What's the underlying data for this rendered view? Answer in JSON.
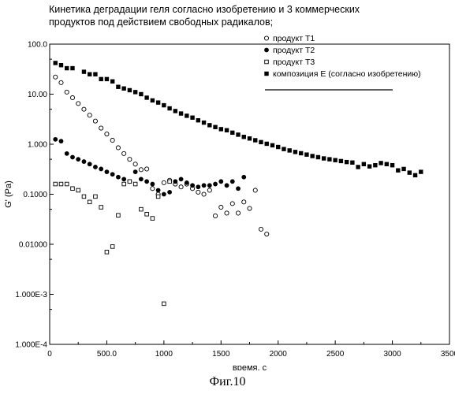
{
  "figure": {
    "title_lines": [
      "Кинетика деградации геля согласно изобретению и 3 коммерческих",
      "продуктов под действием свободных радикалов;"
    ],
    "caption": "Фиг.10"
  },
  "chart_data": {
    "type": "scatter",
    "title": "Кинетика деградации геля согласно изобретению и 3 коммерческих продуктов под действием свободных радикалов;",
    "xlabel": "время. с",
    "ylabel": "G' (Pa)",
    "xlim": [
      0,
      3500
    ],
    "ylim": [
      0.0001,
      100
    ],
    "y_scale": "log",
    "grid": false,
    "legend_position": "top-right",
    "x_ticks": [
      0,
      500,
      1000,
      1500,
      2000,
      2500,
      3000,
      3500
    ],
    "x_tick_labels": [
      "0",
      "500.0",
      "1000",
      "1500",
      "2000",
      "2500",
      "3000",
      "3500"
    ],
    "y_ticks": [
      100,
      10,
      1,
      0.1,
      0.01,
      0.001,
      0.0001
    ],
    "y_tick_labels": [
      "100.0",
      "10.00",
      "1.000",
      "0.1000",
      "0.01000",
      "1.000E-3",
      "1.000E-4"
    ],
    "series": [
      {
        "name": "продукт T1",
        "marker": "open-circle",
        "points": [
          [
            50,
            22
          ],
          [
            100,
            17
          ],
          [
            150,
            11
          ],
          [
            200,
            8.5
          ],
          [
            250,
            6.5
          ],
          [
            300,
            5
          ],
          [
            350,
            3.8
          ],
          [
            400,
            2.9
          ],
          [
            450,
            2.1
          ],
          [
            500,
            1.6
          ],
          [
            550,
            1.2
          ],
          [
            600,
            0.85
          ],
          [
            650,
            0.65
          ],
          [
            700,
            0.5
          ],
          [
            750,
            0.4
          ],
          [
            800,
            0.31
          ],
          [
            850,
            0.32
          ],
          [
            900,
            0.13
          ],
          [
            950,
            0.1
          ],
          [
            1000,
            0.17
          ],
          [
            1050,
            0.19
          ],
          [
            1100,
            0.16
          ],
          [
            1150,
            0.14
          ],
          [
            1200,
            0.16
          ],
          [
            1250,
            0.13
          ],
          [
            1300,
            0.11
          ],
          [
            1350,
            0.1
          ],
          [
            1400,
            0.12
          ],
          [
            1450,
            0.037
          ],
          [
            1500,
            0.055
          ],
          [
            1550,
            0.042
          ],
          [
            1600,
            0.065
          ],
          [
            1650,
            0.042
          ],
          [
            1700,
            0.07
          ],
          [
            1750,
            0.052
          ],
          [
            1800,
            0.12
          ],
          [
            1850,
            0.02
          ],
          [
            1900,
            0.016
          ]
        ]
      },
      {
        "name": "продукт T2",
        "marker": "filled-circle",
        "points": [
          [
            50,
            1.25
          ],
          [
            100,
            1.15
          ],
          [
            150,
            0.65
          ],
          [
            200,
            0.55
          ],
          [
            250,
            0.5
          ],
          [
            300,
            0.45
          ],
          [
            350,
            0.4
          ],
          [
            400,
            0.35
          ],
          [
            450,
            0.32
          ],
          [
            500,
            0.28
          ],
          [
            550,
            0.25
          ],
          [
            600,
            0.22
          ],
          [
            650,
            0.2
          ],
          [
            700,
            0.18
          ],
          [
            750,
            0.28
          ],
          [
            800,
            0.2
          ],
          [
            850,
            0.18
          ],
          [
            900,
            0.16
          ],
          [
            950,
            0.12
          ],
          [
            1000,
            0.1
          ],
          [
            1050,
            0.11
          ],
          [
            1100,
            0.18
          ],
          [
            1150,
            0.2
          ],
          [
            1200,
            0.17
          ],
          [
            1250,
            0.15
          ],
          [
            1300,
            0.14
          ],
          [
            1350,
            0.15
          ],
          [
            1400,
            0.15
          ],
          [
            1450,
            0.16
          ],
          [
            1500,
            0.18
          ],
          [
            1550,
            0.15
          ],
          [
            1600,
            0.18
          ],
          [
            1650,
            0.13
          ],
          [
            1700,
            0.22
          ]
        ]
      },
      {
        "name": "продукт T3",
        "marker": "open-square",
        "points": [
          [
            50,
            0.16
          ],
          [
            100,
            0.16
          ],
          [
            150,
            0.16
          ],
          [
            200,
            0.13
          ],
          [
            250,
            0.12
          ],
          [
            300,
            0.09
          ],
          [
            350,
            0.07
          ],
          [
            400,
            0.09
          ],
          [
            450,
            0.055
          ],
          [
            500,
            0.007
          ],
          [
            550,
            0.009
          ],
          [
            600,
            0.038
          ],
          [
            650,
            0.16
          ],
          [
            700,
            0.18
          ],
          [
            750,
            0.16
          ],
          [
            800,
            0.05
          ],
          [
            850,
            0.04
          ],
          [
            900,
            0.033
          ],
          [
            950,
            0.09
          ],
          [
            1000,
            0.00065
          ],
          [
            1050,
            0.18
          ]
        ]
      },
      {
        "name": "композиция E (согласно изобретению)",
        "marker": "filled-square",
        "points": [
          [
            50,
            42
          ],
          [
            100,
            38
          ],
          [
            150,
            33
          ],
          [
            200,
            33
          ],
          [
            300,
            28
          ],
          [
            350,
            25
          ],
          [
            400,
            25
          ],
          [
            450,
            20
          ],
          [
            500,
            20
          ],
          [
            550,
            18
          ],
          [
            600,
            14
          ],
          [
            650,
            13
          ],
          [
            700,
            12
          ],
          [
            750,
            11
          ],
          [
            800,
            10
          ],
          [
            850,
            8.5
          ],
          [
            900,
            7.5
          ],
          [
            950,
            6.8
          ],
          [
            1000,
            6
          ],
          [
            1050,
            5.2
          ],
          [
            1100,
            4.6
          ],
          [
            1150,
            4.1
          ],
          [
            1200,
            3.7
          ],
          [
            1250,
            3.4
          ],
          [
            1300,
            3
          ],
          [
            1350,
            2.7
          ],
          [
            1400,
            2.4
          ],
          [
            1450,
            2.2
          ],
          [
            1500,
            2
          ],
          [
            1550,
            1.9
          ],
          [
            1600,
            1.7
          ],
          [
            1650,
            1.55
          ],
          [
            1700,
            1.4
          ],
          [
            1750,
            1.3
          ],
          [
            1800,
            1.2
          ],
          [
            1850,
            1.1
          ],
          [
            1900,
            1.02
          ],
          [
            1950,
            0.95
          ],
          [
            2000,
            0.88
          ],
          [
            2050,
            0.8
          ],
          [
            2100,
            0.75
          ],
          [
            2150,
            0.7
          ],
          [
            2200,
            0.66
          ],
          [
            2250,
            0.62
          ],
          [
            2300,
            0.58
          ],
          [
            2350,
            0.55
          ],
          [
            2400,
            0.52
          ],
          [
            2450,
            0.5
          ],
          [
            2500,
            0.48
          ],
          [
            2550,
            0.46
          ],
          [
            2600,
            0.44
          ],
          [
            2650,
            0.43
          ],
          [
            2700,
            0.35
          ],
          [
            2750,
            0.4
          ],
          [
            2800,
            0.36
          ],
          [
            2850,
            0.38
          ],
          [
            2900,
            0.42
          ],
          [
            2950,
            0.4
          ],
          [
            3000,
            0.38
          ],
          [
            3050,
            0.3
          ],
          [
            3100,
            0.32
          ],
          [
            3150,
            0.27
          ],
          [
            3200,
            0.24
          ],
          [
            3250,
            0.28
          ]
        ]
      }
    ]
  }
}
